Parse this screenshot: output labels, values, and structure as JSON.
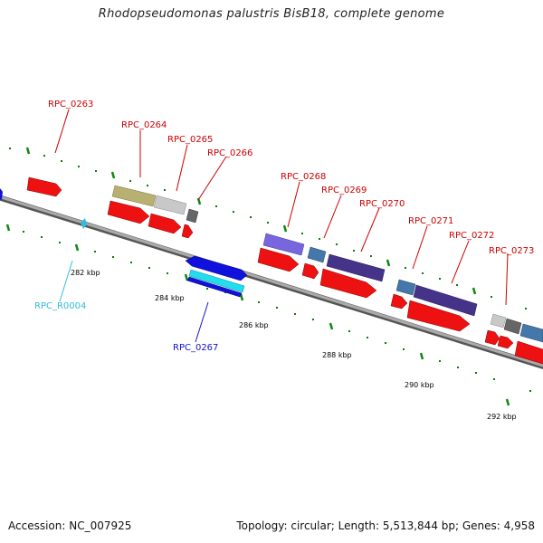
{
  "title": "Rhodopseudomonas palustris BisB18, complete genome",
  "footer": {
    "accession": "Accession: NC_007925",
    "summary": "Topology: circular; Length: 5,513,844 bp; Genes: 4,958"
  },
  "colors": {
    "cds": "#ee1111",
    "label_red": "#cc0000",
    "label_blue": "#1111cc",
    "label_cyan": "#33bbdd",
    "backbone": "#888888",
    "tick": "#118811",
    "dot": "#117711"
  },
  "axis_labels": [
    {
      "text": "282 kbp"
    },
    {
      "text": "284 kbp"
    },
    {
      "text": "286 kbp"
    },
    {
      "text": "288 kbp"
    },
    {
      "text": "290 kbp"
    },
    {
      "text": "292 kbp"
    }
  ],
  "gene_labels": [
    {
      "text": "RPC_0263"
    },
    {
      "text": "RPC_0264"
    },
    {
      "text": "RPC_0265"
    },
    {
      "text": "RPC_0266"
    },
    {
      "text": "RPC_0268"
    },
    {
      "text": "RPC_0269"
    },
    {
      "text": "RPC_0270"
    },
    {
      "text": "RPC_0271"
    },
    {
      "text": "RPC_0272"
    },
    {
      "text": "RPC_0273"
    },
    {
      "text": "RPC_0267"
    },
    {
      "text": "RPC_R0004"
    }
  ]
}
